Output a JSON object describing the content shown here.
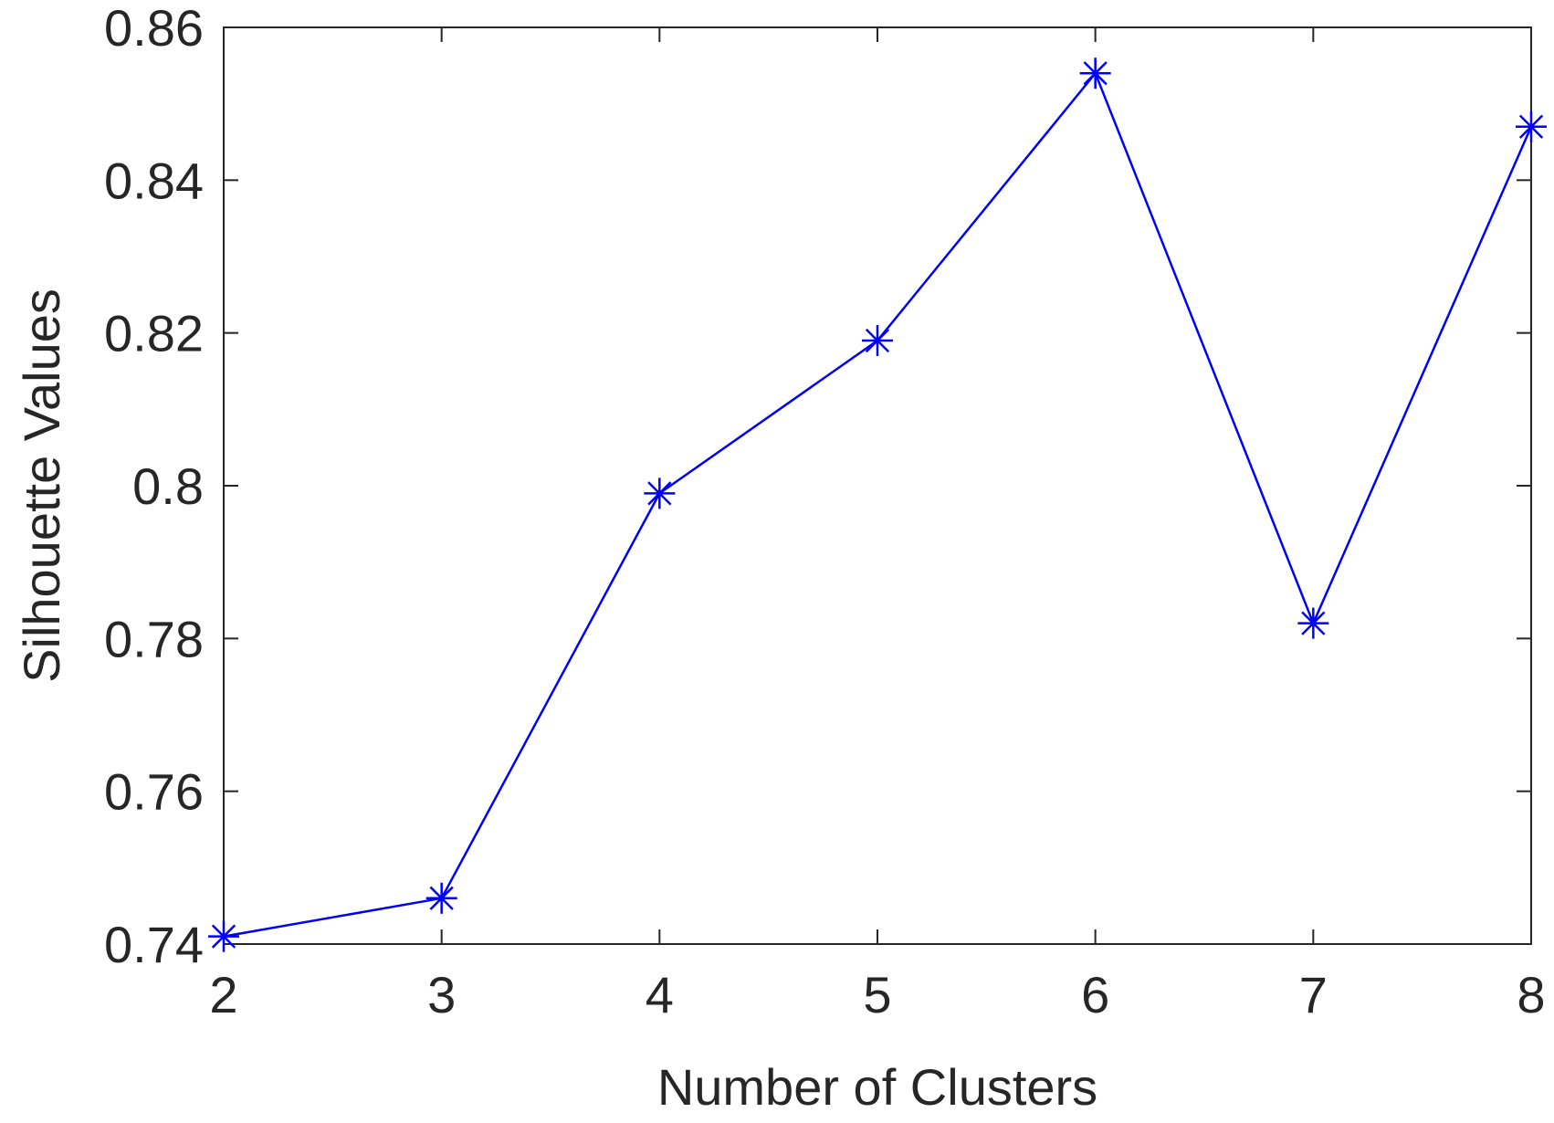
{
  "chart_data": {
    "type": "line",
    "title": "",
    "xlabel": "Number of Clusters",
    "ylabel": "Silhouette Values",
    "x": [
      2,
      3,
      4,
      5,
      6,
      7,
      8
    ],
    "series": [
      {
        "values": [
          0.741,
          0.746,
          0.799,
          0.819,
          0.854,
          0.782,
          0.847
        ],
        "color": "#0000ff",
        "marker": "asterisk"
      }
    ],
    "xlim": [
      2,
      8
    ],
    "ylim": [
      0.74,
      0.86
    ],
    "xticks": [
      2,
      3,
      4,
      5,
      6,
      7,
      8
    ],
    "xtick_labels": [
      "2",
      "3",
      "4",
      "5",
      "6",
      "7",
      "8"
    ],
    "yticks": [
      0.74,
      0.76,
      0.78,
      0.8,
      0.82,
      0.84,
      0.86
    ],
    "ytick_labels": [
      "0.74",
      "0.76",
      "0.78",
      "0.8",
      "0.82",
      "0.84",
      "0.86"
    ],
    "grid": false,
    "legend": "none",
    "axis_color": "#262626"
  }
}
